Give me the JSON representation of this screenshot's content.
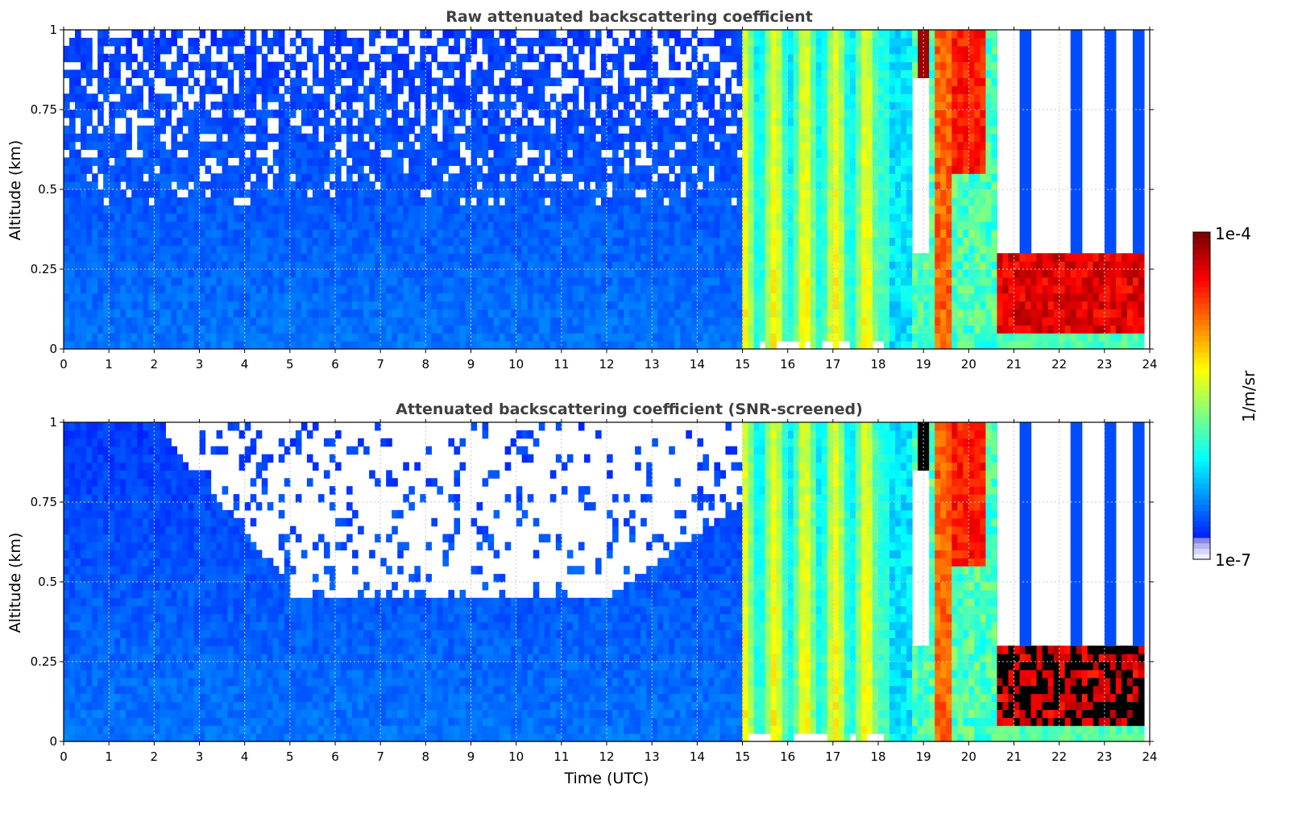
{
  "chart_data": [
    {
      "type": "heatmap",
      "title": "Raw attenuated backscattering coefficient",
      "xlabel": "",
      "ylabel": "Altitude (km)",
      "xlim": [
        0,
        24
      ],
      "ylim": [
        0,
        1
      ],
      "x_ticks": [
        "0",
        "1",
        "2",
        "3",
        "4",
        "5",
        "6",
        "7",
        "8",
        "9",
        "10",
        "11",
        "12",
        "13",
        "14",
        "15",
        "16",
        "17",
        "18",
        "19",
        "20",
        "21",
        "22",
        "23",
        "24"
      ],
      "y_ticks": [
        "0",
        "0.25",
        "0.5",
        "0.75",
        "1"
      ],
      "grid": true,
      "screened": false
    },
    {
      "type": "heatmap",
      "title": "Attenuated backscattering coefficient (SNR-screened)",
      "xlabel": "Time (UTC)",
      "ylabel": "Altitude (km)",
      "xlim": [
        0,
        24
      ],
      "ylim": [
        0,
        1
      ],
      "x_ticks": [
        "0",
        "1",
        "2",
        "3",
        "4",
        "5",
        "6",
        "7",
        "8",
        "9",
        "10",
        "11",
        "12",
        "13",
        "14",
        "15",
        "16",
        "17",
        "18",
        "19",
        "20",
        "21",
        "22",
        "23",
        "24"
      ],
      "y_ticks": [
        "0",
        "0.25",
        "0.5",
        "0.75",
        "1"
      ],
      "grid": true,
      "screened": true
    }
  ],
  "colorbar": {
    "label": "1/m/sr",
    "min_label": "1e-7",
    "max_label": "1e-4",
    "scale": "log",
    "colormap": "jet"
  },
  "colors": {
    "title": "#404040",
    "grid": "#c8c8c8",
    "saturated": "#000000"
  }
}
